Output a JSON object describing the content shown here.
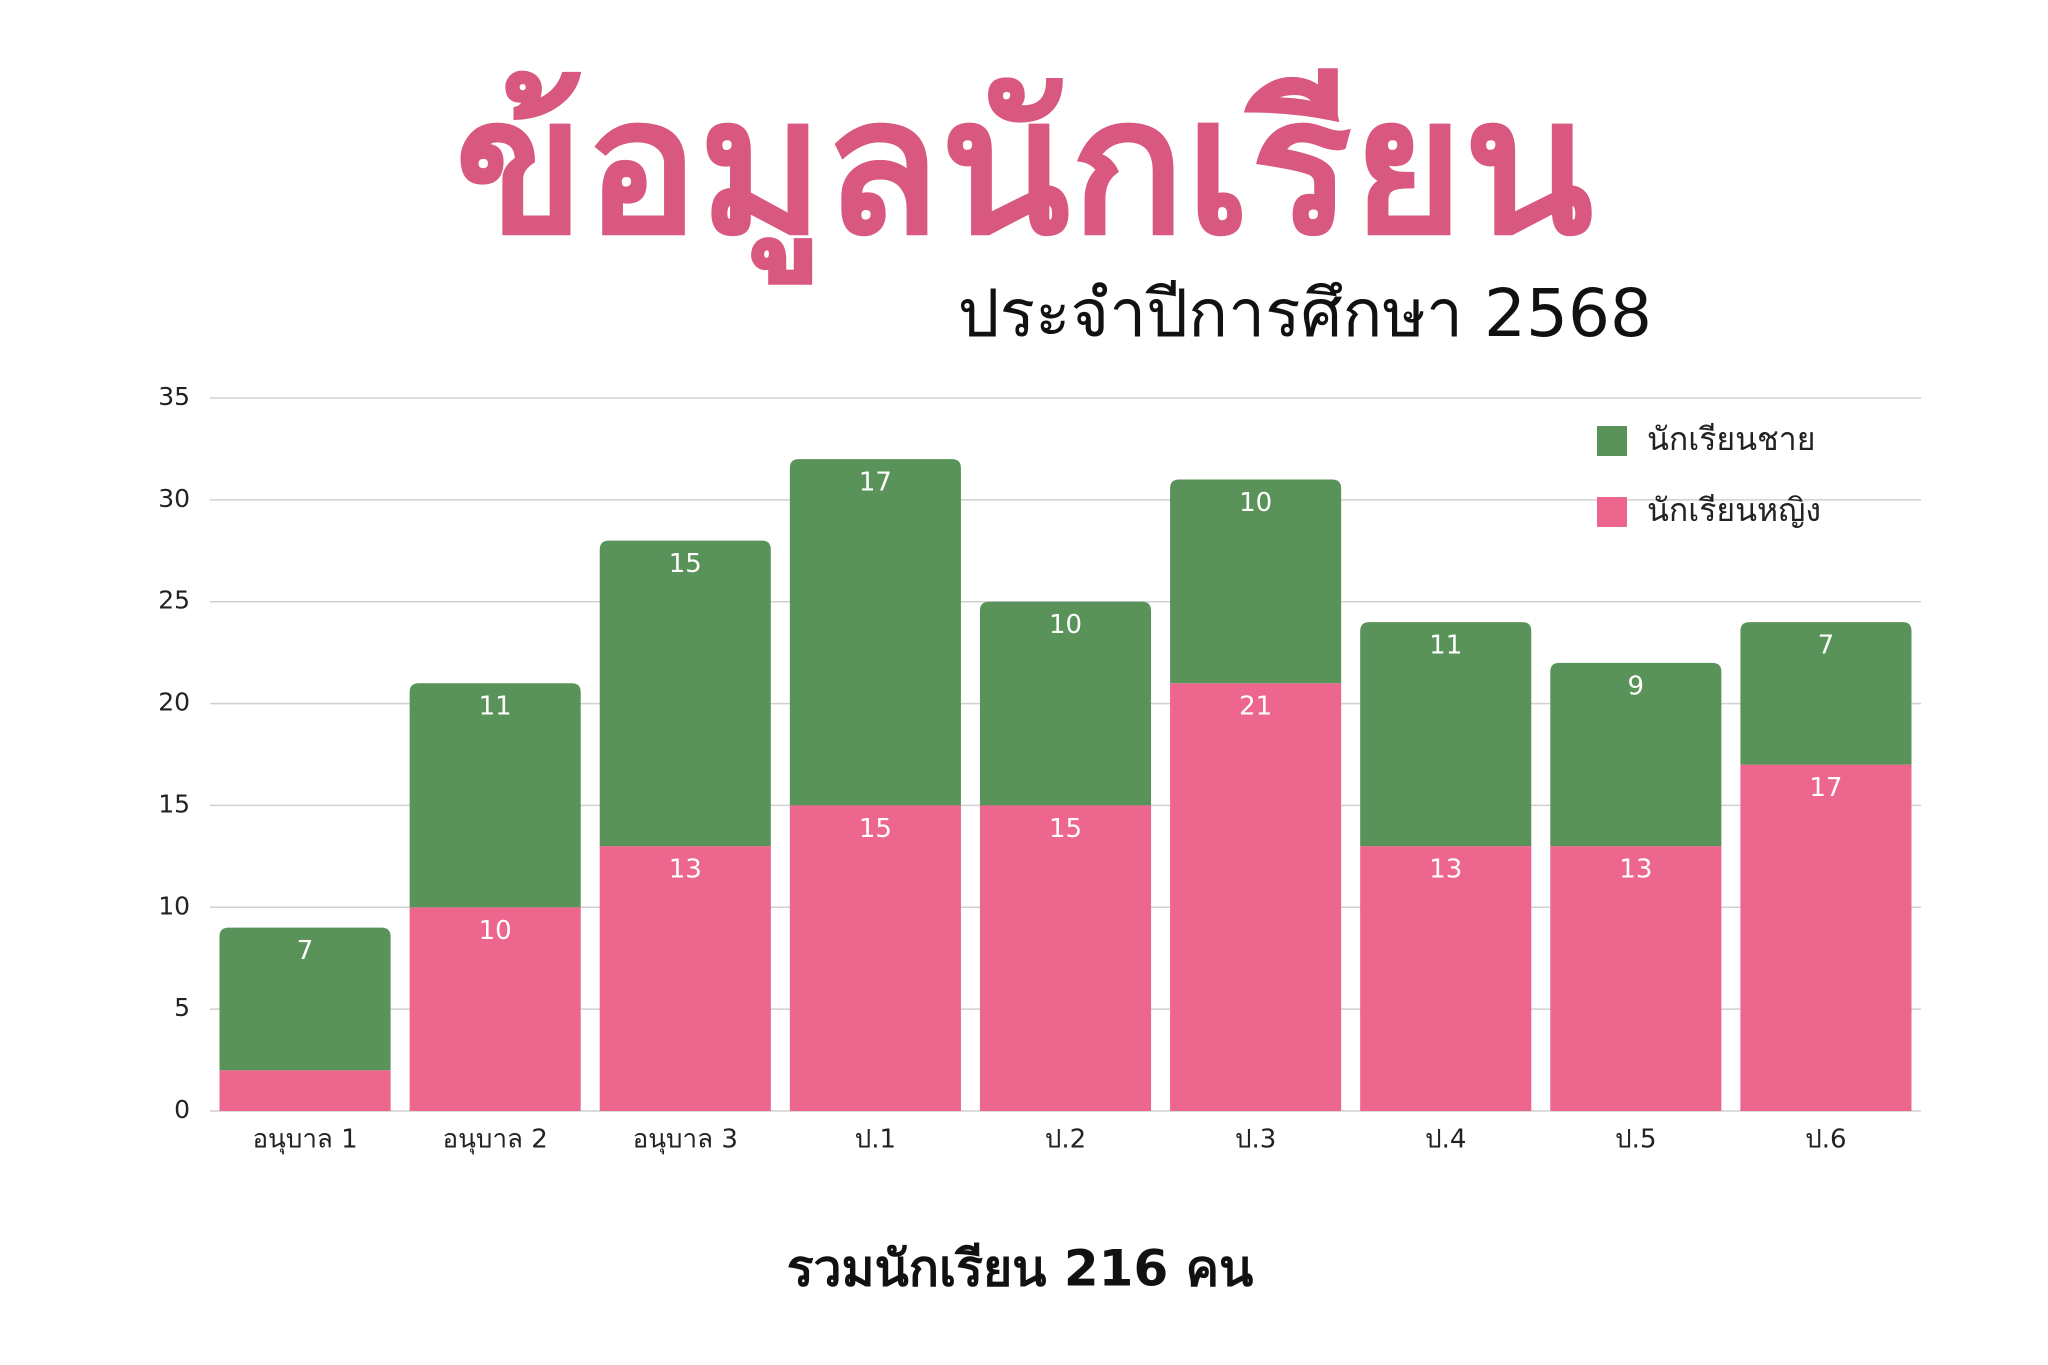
{
  "chart_data": {
    "type": "stacked-bar",
    "title": "ข้อมูลนักเรียน",
    "subtitle": "ประจำปีการศึกษา 2568",
    "footer": "รวมนักเรียน 216 คน",
    "categories": [
      "อนุบาล 1",
      "อนุบาล 2",
      "อนุบาล 3",
      "ป.1",
      "ป.2",
      "ป.3",
      "ป.4",
      "ป.5",
      "ป.6"
    ],
    "series": [
      {
        "name": "นักเรียนชาย",
        "color": "#5a9359",
        "values": [
          7,
          11,
          15,
          17,
          10,
          10,
          11,
          9,
          7
        ]
      },
      {
        "name": "นักเรียนหญิง",
        "color": "#ed668e",
        "values": [
          2,
          10,
          13,
          15,
          15,
          21,
          13,
          13,
          17
        ],
        "value_labels": [
          null,
          "10",
          "13",
          "15",
          "15",
          "21",
          "13",
          "13",
          "17"
        ]
      }
    ],
    "ylim": [
      0,
      35
    ],
    "yticks": [
      0,
      5,
      10,
      15,
      20,
      25,
      30,
      35
    ],
    "grid": true,
    "legend": "top-right"
  }
}
